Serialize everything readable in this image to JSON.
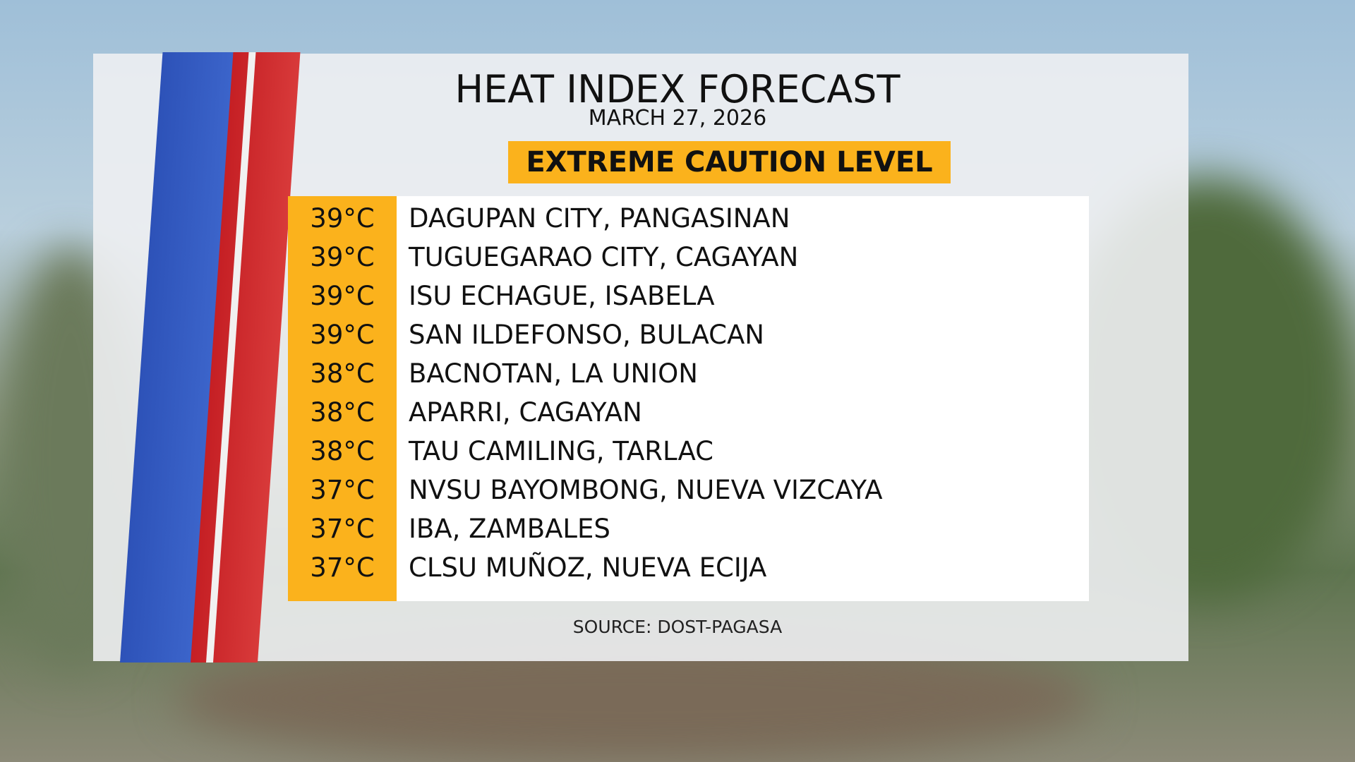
{
  "header": {
    "title": "HEAT INDEX FORECAST",
    "date": "MARCH 27, 2026",
    "level": "EXTREME CAUTION LEVEL"
  },
  "table": {
    "rows": [
      [
        "39°C",
        "DAGUPAN CITY, PANGASINAN"
      ],
      [
        "39°C",
        "TUGUEGARAO CITY, CAGAYAN"
      ],
      [
        "39°C",
        "ISU ECHAGUE, ISABELA"
      ],
      [
        "39°C",
        "SAN ILDEFONSO, BULACAN"
      ],
      [
        "38°C",
        "BACNOTAN, LA UNION"
      ],
      [
        "38°C",
        "APARRI, CAGAYAN"
      ],
      [
        "38°C",
        "TAU CAMILING, TARLAC"
      ],
      [
        "37°C",
        "NVSU BAYOMBONG, NUEVA VIZCAYA"
      ],
      [
        "37°C",
        "IBA, ZAMBALES"
      ],
      [
        "37°C",
        "CLSU MUÑOZ, NUEVA ECIJA"
      ]
    ]
  },
  "footer": {
    "source": "SOURCE: DOST-PAGASA"
  }
}
